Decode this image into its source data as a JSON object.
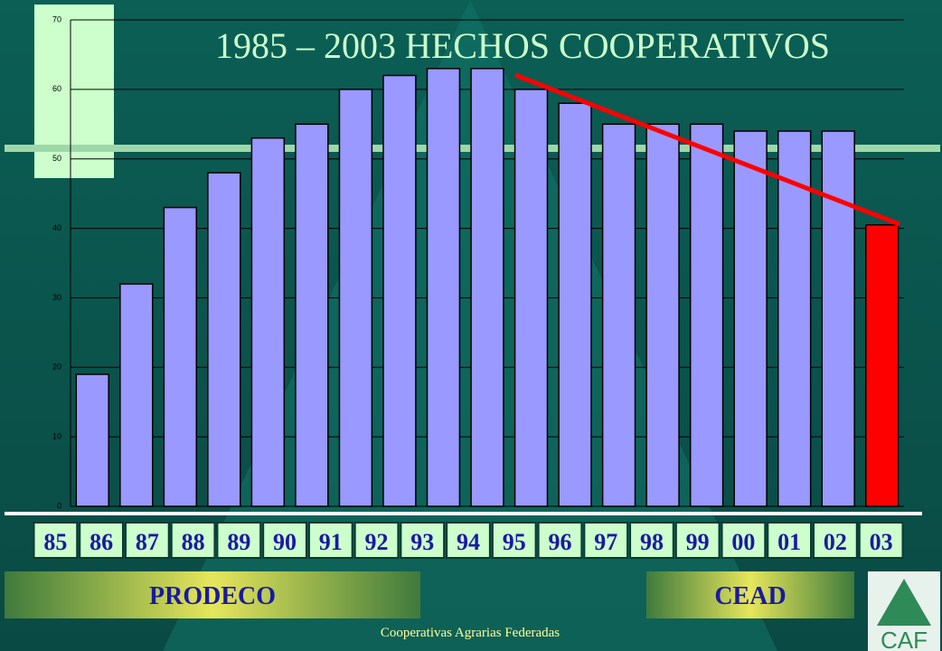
{
  "chart_data": {
    "type": "bar",
    "title": "1985 – 2003 HECHOS COOPERATIVOS",
    "categories": [
      "85",
      "86",
      "87",
      "88",
      "89",
      "90",
      "91",
      "92",
      "93",
      "94",
      "95",
      "96",
      "97",
      "98",
      "99",
      "00",
      "01",
      "02",
      "03"
    ],
    "values": [
      19,
      32,
      43,
      48,
      53,
      55,
      60,
      62,
      63,
      63,
      60,
      58,
      55,
      55,
      55,
      54,
      54,
      54,
      40.5
    ],
    "bar_colors": [
      "#9999ff",
      "#9999ff",
      "#9999ff",
      "#9999ff",
      "#9999ff",
      "#9999ff",
      "#9999ff",
      "#9999ff",
      "#9999ff",
      "#9999ff",
      "#9999ff",
      "#9999ff",
      "#9999ff",
      "#9999ff",
      "#9999ff",
      "#9999ff",
      "#9999ff",
      "#9999ff",
      "#ff0000"
    ],
    "ylim": [
      0,
      70
    ],
    "yticks": [
      0,
      10,
      20,
      30,
      40,
      50,
      60,
      70
    ],
    "grid": true
  },
  "labels": {
    "left": "PRODECO",
    "right": "CEAD"
  },
  "footer": "Cooperativas Agrarias Federadas",
  "logo": "CAF"
}
